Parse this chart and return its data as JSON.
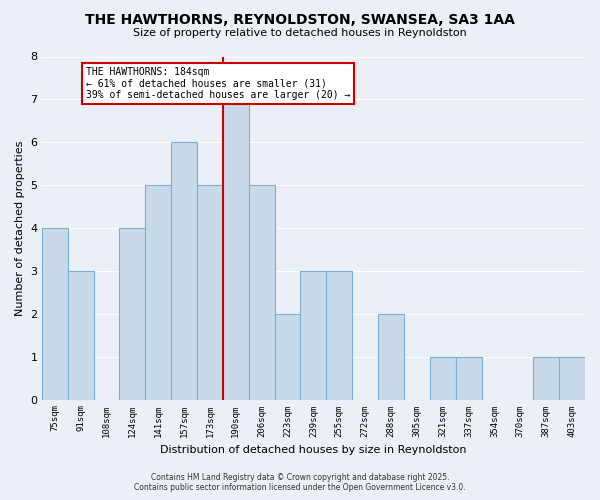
{
  "title": "THE HAWTHORNS, REYNOLDSTON, SWANSEA, SA3 1AA",
  "subtitle": "Size of property relative to detached houses in Reynoldston",
  "xlabel": "Distribution of detached houses by size in Reynoldston",
  "ylabel": "Number of detached properties",
  "bin_labels": [
    "75sqm",
    "91sqm",
    "108sqm",
    "124sqm",
    "141sqm",
    "157sqm",
    "173sqm",
    "190sqm",
    "206sqm",
    "223sqm",
    "239sqm",
    "255sqm",
    "272sqm",
    "288sqm",
    "305sqm",
    "321sqm",
    "337sqm",
    "354sqm",
    "370sqm",
    "387sqm",
    "403sqm"
  ],
  "bar_values": [
    4,
    3,
    0,
    4,
    5,
    6,
    5,
    7,
    5,
    2,
    3,
    3,
    0,
    2,
    0,
    1,
    1,
    0,
    0,
    1,
    1
  ],
  "bar_color": "#c8daea",
  "bar_edge_color": "#7bafd4",
  "vline_color": "#cc0000",
  "annotation_title": "THE HAWTHORNS: 184sqm",
  "annotation_line1": "← 61% of detached houses are smaller (31)",
  "annotation_line2": "39% of semi-detached houses are larger (20) →",
  "annotation_box_facecolor": "#ffffff",
  "annotation_box_edgecolor": "#cc0000",
  "ylim": [
    0,
    8
  ],
  "yticks": [
    0,
    1,
    2,
    3,
    4,
    5,
    6,
    7,
    8
  ],
  "footer1": "Contains HM Land Registry data © Crown copyright and database right 2025.",
  "footer2": "Contains public sector information licensed under the Open Government Licence v3.0.",
  "bg_color": "#eaf0f6",
  "grid_color": "#ffffff"
}
